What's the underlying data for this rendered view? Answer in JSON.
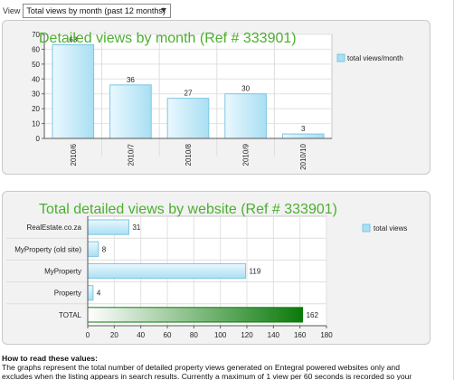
{
  "view": {
    "label": "View",
    "selected": "Total views by month (past 12 months)"
  },
  "colors": {
    "title_green": "#4caf2e",
    "bar_fill_light": "#eaf8fe",
    "bar_fill_dark": "#a9dff3",
    "bar_stroke": "#7cc6e3",
    "total_bar_dark": "#0a7a0a",
    "total_bar_light": "#ffffff"
  },
  "chart_data": [
    {
      "type": "bar",
      "orientation": "vertical",
      "title": "Detailed views by month (Ref # 333901)",
      "categories": [
        "2010/6",
        "2010/7",
        "2010/8",
        "2010/9",
        "2010/10"
      ],
      "series": [
        {
          "name": "total views/month",
          "values": [
            63,
            36,
            27,
            30,
            3
          ]
        }
      ],
      "ylim": [
        0,
        70
      ],
      "yticks": [
        0,
        10,
        20,
        30,
        40,
        50,
        60,
        70
      ],
      "grid": true,
      "legend": "right"
    },
    {
      "type": "bar",
      "orientation": "horizontal",
      "title": "Total detailed views by website (Ref # 333901)",
      "categories": [
        "RealEstate.co.za",
        "MyProperty (old site)",
        "MyProperty",
        "Property",
        "TOTAL"
      ],
      "series": [
        {
          "name": "total views",
          "values": [
            31,
            8,
            119,
            4,
            162
          ]
        }
      ],
      "xlim": [
        0,
        180
      ],
      "xticks": [
        0,
        20,
        40,
        60,
        80,
        100,
        120,
        140,
        160,
        180
      ],
      "grid": true,
      "legend": "right"
    }
  ],
  "howto": {
    "heading": "How to read these values:",
    "line1": "The graphs represent the total number of detailed property views generated on Entegral powered websites only and",
    "line2": "excludes when the listing appears in search results. Currently a maximum of 1 view per 60 seconds is recorded so your"
  }
}
